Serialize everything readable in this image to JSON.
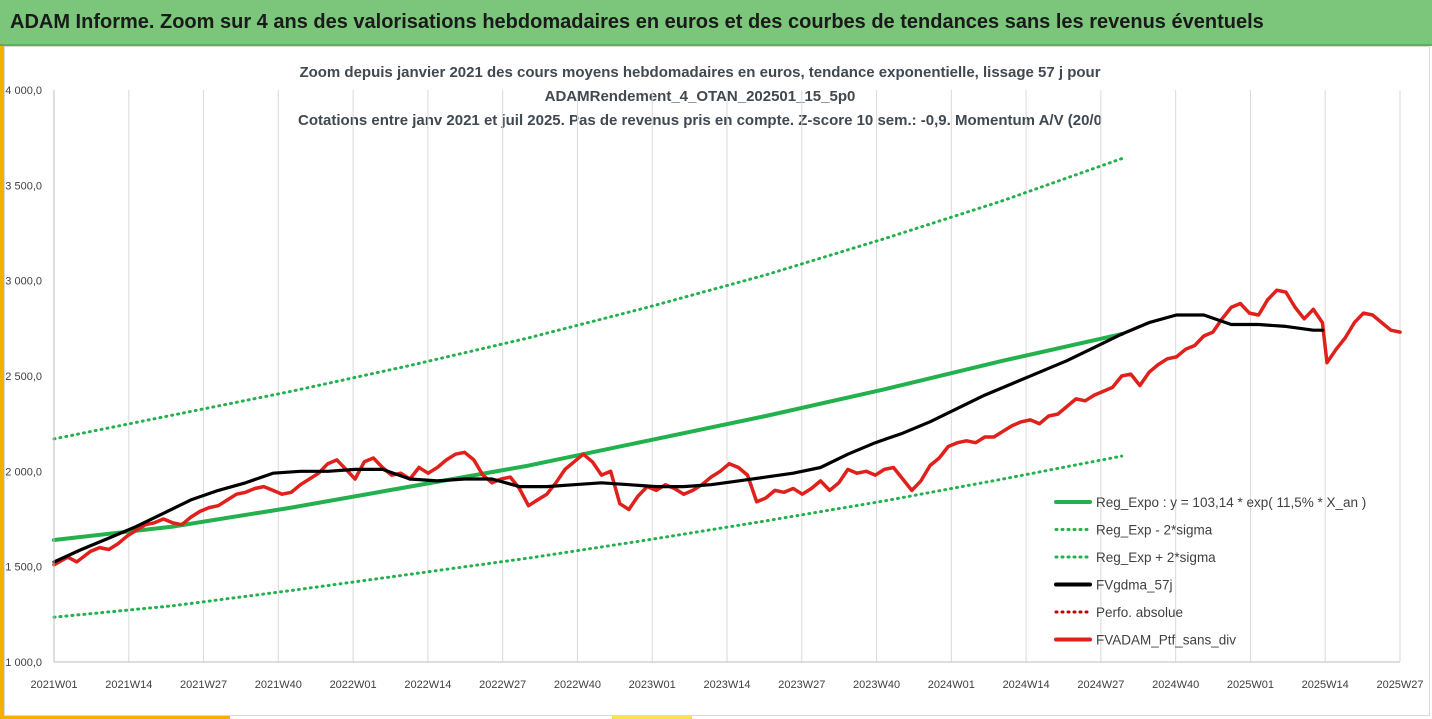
{
  "header": {
    "title": "ADAM Informe. Zoom sur 4 ans des valorisations hebdomadaires en euros et des courbes de tendances sans les revenus éventuels"
  },
  "chart_data": {
    "type": "line",
    "title_lines": [
      "Zoom depuis janvier 2021 des cours moyens hebdomadaires  en euros, tendance exponentielle, lissage 57 j pour",
      "ADAMRendement_4_OTAN_202501_15_5p0",
      "Cotations entre janv 2021 et juil 2025. Pas de revenus pris en compte. Z-score 10 sem.: -0,9. Momentum  A/V (20/0"
    ],
    "xlabel": "",
    "ylabel": "",
    "ylim": [
      1000,
      4000
    ],
    "y_ticks": [
      "1 000,0",
      "1 500,0",
      "2 000,0",
      "2 500,0",
      "3 000,0",
      "3 500,0",
      "4 000,0"
    ],
    "x_ticks": [
      "2021W01",
      "2021W14",
      "2021W27",
      "2021W40",
      "2022W01",
      "2022W14",
      "2022W27",
      "2022W40",
      "2023W01",
      "2023W14",
      "2023W27",
      "2023W40",
      "2024W01",
      "2024W14",
      "2024W27",
      "2024W40",
      "2025W01",
      "2025W14",
      "2025W27"
    ],
    "grid": "vertical",
    "legend_position": "bottom-right",
    "series": [
      {
        "name": "Reg_Expo : y = 103,14 * exp( 11,5% *  X_an )",
        "style": "solid",
        "color": "#22b14c",
        "points": [
          [
            0,
            1640
          ],
          [
            26,
            1710
          ],
          [
            52,
            1810
          ],
          [
            78,
            1920
          ],
          [
            104,
            2030
          ],
          [
            130,
            2160
          ],
          [
            156,
            2290
          ],
          [
            182,
            2430
          ],
          [
            208,
            2580
          ],
          [
            234,
            2720
          ]
        ]
      },
      {
        "name": "Reg_Exp - 2*sigma",
        "style": "dotted",
        "color": "#22b14c",
        "points": [
          [
            0,
            1235
          ],
          [
            26,
            1295
          ],
          [
            52,
            1375
          ],
          [
            78,
            1460
          ],
          [
            104,
            1545
          ],
          [
            130,
            1640
          ],
          [
            156,
            1740
          ],
          [
            182,
            1845
          ],
          [
            208,
            1960
          ],
          [
            234,
            2080
          ]
        ]
      },
      {
        "name": "Reg_Exp + 2*sigma",
        "style": "dotted",
        "color": "#22b14c",
        "points": [
          [
            0,
            2170
          ],
          [
            26,
            2295
          ],
          [
            52,
            2420
          ],
          [
            78,
            2555
          ],
          [
            104,
            2700
          ],
          [
            130,
            2860
          ],
          [
            156,
            3030
          ],
          [
            182,
            3220
          ],
          [
            208,
            3420
          ],
          [
            234,
            3640
          ]
        ]
      },
      {
        "name": "FVgdma_57j",
        "style": "solid",
        "color": "#000000",
        "points": [
          [
            0,
            1525
          ],
          [
            6,
            1590
          ],
          [
            12,
            1650
          ],
          [
            18,
            1710
          ],
          [
            24,
            1780
          ],
          [
            30,
            1850
          ],
          [
            36,
            1900
          ],
          [
            42,
            1940
          ],
          [
            48,
            1990
          ],
          [
            54,
            2000
          ],
          [
            60,
            2000
          ],
          [
            66,
            2010
          ],
          [
            72,
            2010
          ],
          [
            78,
            1960
          ],
          [
            84,
            1950
          ],
          [
            90,
            1960
          ],
          [
            96,
            1960
          ],
          [
            102,
            1920
          ],
          [
            108,
            1920
          ],
          [
            114,
            1930
          ],
          [
            120,
            1940
          ],
          [
            126,
            1930
          ],
          [
            132,
            1920
          ],
          [
            138,
            1920
          ],
          [
            144,
            1930
          ],
          [
            150,
            1950
          ],
          [
            156,
            1970
          ],
          [
            162,
            1990
          ],
          [
            168,
            2020
          ],
          [
            174,
            2090
          ],
          [
            180,
            2150
          ],
          [
            186,
            2200
          ],
          [
            192,
            2260
          ],
          [
            198,
            2330
          ],
          [
            204,
            2400
          ],
          [
            210,
            2460
          ],
          [
            216,
            2520
          ],
          [
            222,
            2580
          ],
          [
            228,
            2650
          ],
          [
            234,
            2720
          ],
          [
            240,
            2780
          ],
          [
            246,
            2820
          ],
          [
            252,
            2820
          ],
          [
            258,
            2770
          ],
          [
            264,
            2770
          ],
          [
            270,
            2760
          ],
          [
            276,
            2740
          ],
          [
            278,
            2740
          ]
        ]
      },
      {
        "name": "Perfo. absolue",
        "style": "dotted",
        "color": "#c00000",
        "points": []
      },
      {
        "name": "FVADAM_Ptf_sans_div",
        "style": "solid",
        "color": "#e0201b",
        "points": [
          [
            0,
            1510
          ],
          [
            3,
            1550
          ],
          [
            5,
            1525
          ],
          [
            8,
            1580
          ],
          [
            10,
            1600
          ],
          [
            12,
            1590
          ],
          [
            14,
            1620
          ],
          [
            16,
            1660
          ],
          [
            18,
            1690
          ],
          [
            20,
            1720
          ],
          [
            22,
            1730
          ],
          [
            24,
            1750
          ],
          [
            26,
            1730
          ],
          [
            28,
            1720
          ],
          [
            30,
            1760
          ],
          [
            32,
            1790
          ],
          [
            34,
            1810
          ],
          [
            36,
            1820
          ],
          [
            38,
            1850
          ],
          [
            40,
            1880
          ],
          [
            42,
            1890
          ],
          [
            44,
            1910
          ],
          [
            46,
            1920
          ],
          [
            48,
            1900
          ],
          [
            50,
            1880
          ],
          [
            52,
            1890
          ],
          [
            54,
            1930
          ],
          [
            56,
            1960
          ],
          [
            58,
            1990
          ],
          [
            60,
            2040
          ],
          [
            62,
            2060
          ],
          [
            64,
            2010
          ],
          [
            66,
            1960
          ],
          [
            68,
            2050
          ],
          [
            70,
            2070
          ],
          [
            72,
            2020
          ],
          [
            74,
            1980
          ],
          [
            76,
            1990
          ],
          [
            78,
            1960
          ],
          [
            80,
            2020
          ],
          [
            82,
            1990
          ],
          [
            84,
            2020
          ],
          [
            86,
            2060
          ],
          [
            88,
            2090
          ],
          [
            90,
            2100
          ],
          [
            92,
            2060
          ],
          [
            94,
            1980
          ],
          [
            96,
            1940
          ],
          [
            98,
            1960
          ],
          [
            100,
            1970
          ],
          [
            102,
            1910
          ],
          [
            104,
            1820
          ],
          [
            106,
            1850
          ],
          [
            108,
            1880
          ],
          [
            110,
            1940
          ],
          [
            112,
            2010
          ],
          [
            114,
            2050
          ],
          [
            116,
            2090
          ],
          [
            118,
            2050
          ],
          [
            120,
            1980
          ],
          [
            122,
            2000
          ],
          [
            124,
            1830
          ],
          [
            126,
            1800
          ],
          [
            128,
            1870
          ],
          [
            130,
            1920
          ],
          [
            132,
            1900
          ],
          [
            134,
            1930
          ],
          [
            136,
            1910
          ],
          [
            138,
            1880
          ],
          [
            140,
            1900
          ],
          [
            142,
            1930
          ],
          [
            144,
            1970
          ],
          [
            146,
            2000
          ],
          [
            148,
            2040
          ],
          [
            150,
            2020
          ],
          [
            152,
            1980
          ],
          [
            154,
            1840
          ],
          [
            156,
            1860
          ],
          [
            158,
            1900
          ],
          [
            160,
            1890
          ],
          [
            162,
            1910
          ],
          [
            164,
            1880
          ],
          [
            166,
            1910
          ],
          [
            168,
            1950
          ],
          [
            170,
            1900
          ],
          [
            172,
            1940
          ],
          [
            174,
            2010
          ],
          [
            176,
            1990
          ],
          [
            178,
            2000
          ],
          [
            180,
            1980
          ],
          [
            182,
            2010
          ],
          [
            184,
            2020
          ],
          [
            186,
            1960
          ],
          [
            188,
            1900
          ],
          [
            190,
            1950
          ],
          [
            192,
            2030
          ],
          [
            194,
            2070
          ],
          [
            196,
            2130
          ],
          [
            198,
            2150
          ],
          [
            200,
            2160
          ],
          [
            202,
            2150
          ],
          [
            204,
            2180
          ],
          [
            206,
            2180
          ],
          [
            208,
            2210
          ],
          [
            210,
            2240
          ],
          [
            212,
            2260
          ],
          [
            214,
            2270
          ],
          [
            216,
            2250
          ],
          [
            218,
            2290
          ],
          [
            220,
            2300
          ],
          [
            222,
            2340
          ],
          [
            224,
            2380
          ],
          [
            226,
            2370
          ],
          [
            228,
            2400
          ],
          [
            230,
            2420
          ],
          [
            232,
            2440
          ],
          [
            234,
            2500
          ],
          [
            236,
            2510
          ],
          [
            238,
            2450
          ],
          [
            240,
            2520
          ],
          [
            242,
            2560
          ],
          [
            244,
            2590
          ],
          [
            246,
            2600
          ],
          [
            248,
            2640
          ],
          [
            250,
            2660
          ],
          [
            252,
            2710
          ],
          [
            254,
            2730
          ],
          [
            256,
            2800
          ],
          [
            258,
            2860
          ],
          [
            260,
            2880
          ],
          [
            262,
            2830
          ],
          [
            264,
            2820
          ],
          [
            266,
            2900
          ],
          [
            268,
            2950
          ],
          [
            270,
            2940
          ],
          [
            272,
            2860
          ],
          [
            274,
            2800
          ],
          [
            276,
            2850
          ],
          [
            278,
            2780
          ],
          [
            279,
            2570
          ],
          [
            281,
            2640
          ],
          [
            283,
            2700
          ],
          [
            285,
            2780
          ],
          [
            287,
            2830
          ],
          [
            289,
            2820
          ],
          [
            291,
            2780
          ],
          [
            293,
            2740
          ],
          [
            295,
            2730
          ]
        ]
      }
    ]
  }
}
